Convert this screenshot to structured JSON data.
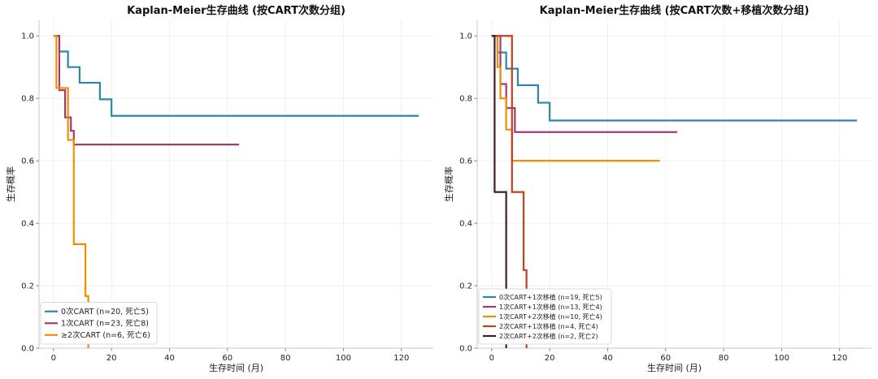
{
  "chart_data": [
    {
      "type": "line",
      "subtype": "kaplan-meier-step",
      "title": "Kaplan-Meier生存曲线 (按CART次数分组)",
      "xlabel": "生存时间 (月)",
      "ylabel": "生存概率",
      "xlim": [
        -5,
        131
      ],
      "ylim": [
        0,
        1.05
      ],
      "xticks": [
        "0",
        "20",
        "40",
        "60",
        "80",
        "100",
        "120"
      ],
      "yticks": [
        "0.0",
        "0.2",
        "0.4",
        "0.6",
        "0.8",
        "1.0"
      ],
      "grid": true,
      "legend_position": "bottom-left",
      "series": [
        {
          "name": "0次CART (n=20, 死亡5)",
          "color": "#2e86ab",
          "x": [
            0,
            1.5,
            2,
            5,
            9,
            16,
            20,
            126
          ],
          "y": [
            1.0,
            1.0,
            0.95,
            0.9,
            0.85,
            0.797,
            0.744,
            0.744
          ]
        },
        {
          "name": "1次CART (n=23, 死亡8)",
          "color": "#a23b72",
          "x": [
            0,
            1.5,
            2,
            4,
            6,
            7,
            64
          ],
          "y": [
            1.0,
            1.0,
            0.826,
            0.739,
            0.696,
            0.652,
            0.652
          ]
        },
        {
          "name": "≥2次CART (n=6, 死亡6)",
          "color": "#f18f01",
          "x": [
            0,
            1,
            4,
            5,
            7,
            11,
            12
          ],
          "y": [
            1.0,
            0.833,
            0.833,
            0.667,
            0.333,
            0.167,
            0.0
          ]
        }
      ]
    },
    {
      "type": "line",
      "subtype": "kaplan-meier-step",
      "title": "Kaplan-Meier生存曲线 (按CART次数+移植次数分组)",
      "xlabel": "生存时间 (月)",
      "ylabel": "生存概率",
      "xlim": [
        -5,
        131
      ],
      "ylim": [
        0,
        1.05
      ],
      "xticks": [
        "0",
        "20",
        "40",
        "60",
        "80",
        "100",
        "120"
      ],
      "yticks": [
        "0.0",
        "0.2",
        "0.4",
        "0.6",
        "0.8",
        "1.0"
      ],
      "grid": true,
      "legend_position": "bottom-left",
      "series": [
        {
          "name": "0次CART+1次移植 (n=19, 死亡5)",
          "color": "#2e86ab",
          "x": [
            0,
            1,
            2,
            5,
            9,
            16,
            20,
            126
          ],
          "y": [
            1.0,
            1.0,
            0.947,
            0.895,
            0.842,
            0.786,
            0.729,
            0.729
          ]
        },
        {
          "name": "1次CART+1次移植 (n=13, 死亡4)",
          "color": "#a23b72",
          "x": [
            0,
            1,
            3,
            5,
            8,
            64
          ],
          "y": [
            1.0,
            1.0,
            0.846,
            0.769,
            0.692,
            0.692
          ]
        },
        {
          "name": "1次CART+2次移植 (n=10, 死亡4)",
          "color": "#f18f01",
          "x": [
            0,
            2,
            3,
            5,
            7,
            58
          ],
          "y": [
            1.0,
            0.9,
            0.8,
            0.7,
            0.6,
            0.6
          ]
        },
        {
          "name": "2次CART+1次移植 (n=4, 死亡4)",
          "color": "#c73e1d",
          "x": [
            0,
            7,
            11,
            12
          ],
          "y": [
            1.0,
            0.5,
            0.25,
            0.0
          ]
        },
        {
          "name": "2次CART+2次移植 (n=2, 死亡2)",
          "color": "#3b1f2b",
          "x": [
            0,
            1,
            5
          ],
          "y": [
            1.0,
            0.5,
            0.0
          ]
        }
      ]
    }
  ]
}
